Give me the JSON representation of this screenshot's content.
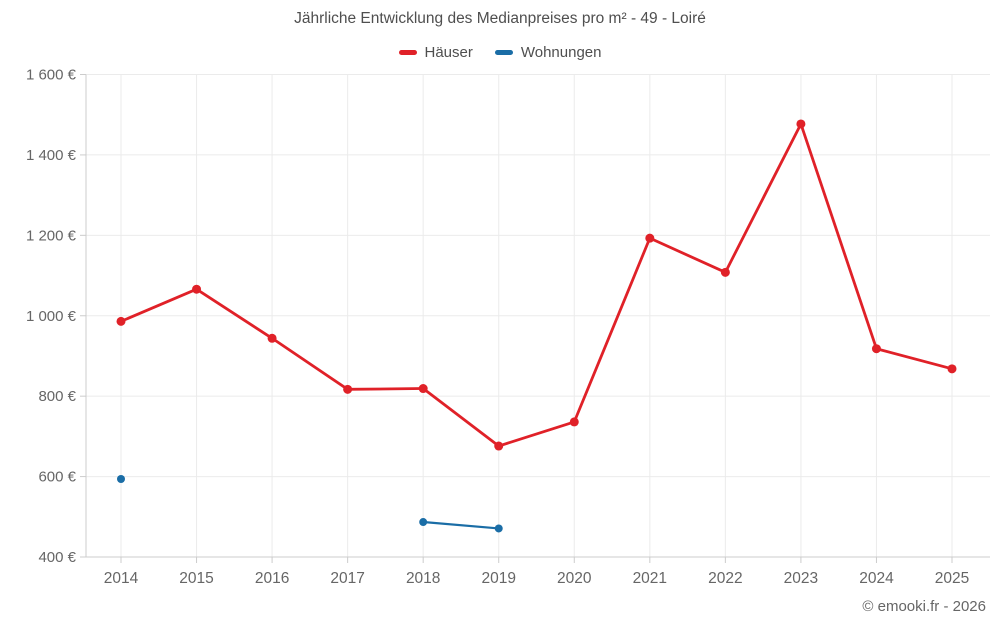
{
  "chart_data": {
    "type": "line",
    "title": "Jährliche Entwicklung des Medianpreises pro m² - 49 - Loiré",
    "categories": [
      "2014",
      "2015",
      "2016",
      "2017",
      "2018",
      "2019",
      "2020",
      "2021",
      "2022",
      "2023",
      "2024",
      "2025"
    ],
    "series": [
      {
        "name": "Häuser",
        "color": "#e02128",
        "values": [
          986,
          1066,
          944,
          817,
          819,
          676,
          736,
          1193,
          1108,
          1477,
          918,
          868
        ]
      },
      {
        "name": "Wohnungen",
        "color": "#1a6da6",
        "values": [
          594,
          null,
          null,
          null,
          487,
          471,
          null,
          null,
          null,
          null,
          null,
          null
        ]
      }
    ],
    "ylim": [
      400,
      1600
    ],
    "ytick_values": [
      400,
      600,
      800,
      1000,
      1200,
      1400,
      1600
    ],
    "ytick_labels": [
      "400 €",
      "600 €",
      "800 €",
      "1 000 €",
      "1 200 €",
      "1 400 €",
      "1 600 €"
    ],
    "xlabel": "",
    "ylabel": "",
    "grid": "on",
    "legend_position": "top",
    "colors": {
      "grid_line": "#ebebeb",
      "axis_line": "#cccccc",
      "tick_text": "#666666",
      "title_text": "#4f4f4f",
      "background": "#ffffff"
    }
  },
  "footer": {
    "copyright": "© emooki.fr - 2026"
  }
}
